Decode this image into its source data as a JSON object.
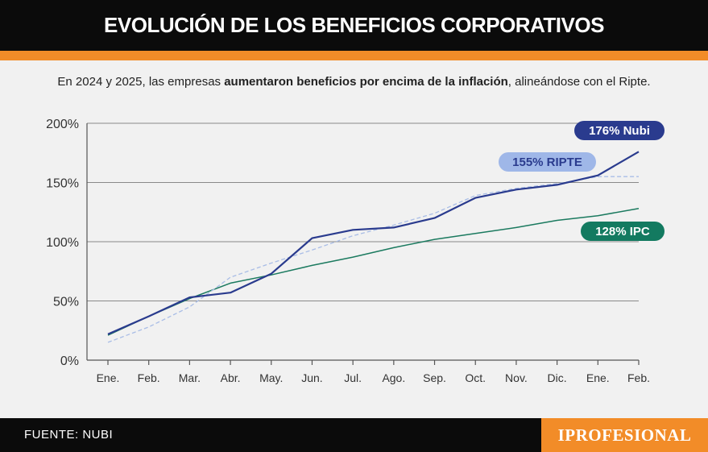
{
  "header": {
    "title": "EVOLUCIÓN DE LOS BENEFICIOS CORPORATIVOS",
    "accent_color": "#f28c28",
    "background_color": "#0b0b0b"
  },
  "subtitle": {
    "part1": "En 2024 y 2025, las empresas ",
    "bold1": "aumentaron  beneficios por encima de la inflación",
    "part2": ",  alineándose con el Ripte."
  },
  "footer": {
    "source": "FUENTE: NUBI",
    "logo": "IPROFESIONAL"
  },
  "chart_data": {
    "type": "line",
    "title": "EVOLUCIÓN DE LOS BENEFICIOS CORPORATIVOS",
    "xlabel": "",
    "ylabel": "",
    "ylim": [
      0,
      200
    ],
    "grid": true,
    "categories": [
      "Ene.",
      "Feb.",
      "Mar.",
      "Abr.",
      "May.",
      "Jun.",
      "Jul.",
      "Ago.",
      "Sep.",
      "Oct.",
      "Nov.",
      "Dic.",
      "Ene.",
      "Feb."
    ],
    "y_ticks": [
      {
        "value": 0,
        "label": "0%"
      },
      {
        "value": 50,
        "label": "50%"
      },
      {
        "value": 100,
        "label": "100%"
      },
      {
        "value": 150,
        "label": "150%"
      },
      {
        "value": 200,
        "label": "200%"
      }
    ],
    "series": [
      {
        "name": "IPC",
        "color": "#1b7a5f",
        "style": "solid",
        "values": [
          21,
          37,
          52,
          65,
          72,
          80,
          87,
          95,
          102,
          107,
          112,
          118,
          122,
          128
        ],
        "label": "128% IPC"
      },
      {
        "name": "RIPTE",
        "color": "#a9bde6",
        "style": "dashed",
        "values": [
          15,
          28,
          45,
          70,
          82,
          93,
          105,
          114,
          124,
          139,
          145,
          149,
          155,
          155
        ],
        "label": "155% RIPTE"
      },
      {
        "name": "Nubi",
        "color": "#2a3b8e",
        "style": "solid",
        "values": [
          22,
          37,
          53,
          57,
          73,
          103,
          110,
          112,
          120,
          137,
          144,
          148,
          156,
          176
        ],
        "label": "176% Nubi"
      }
    ]
  }
}
